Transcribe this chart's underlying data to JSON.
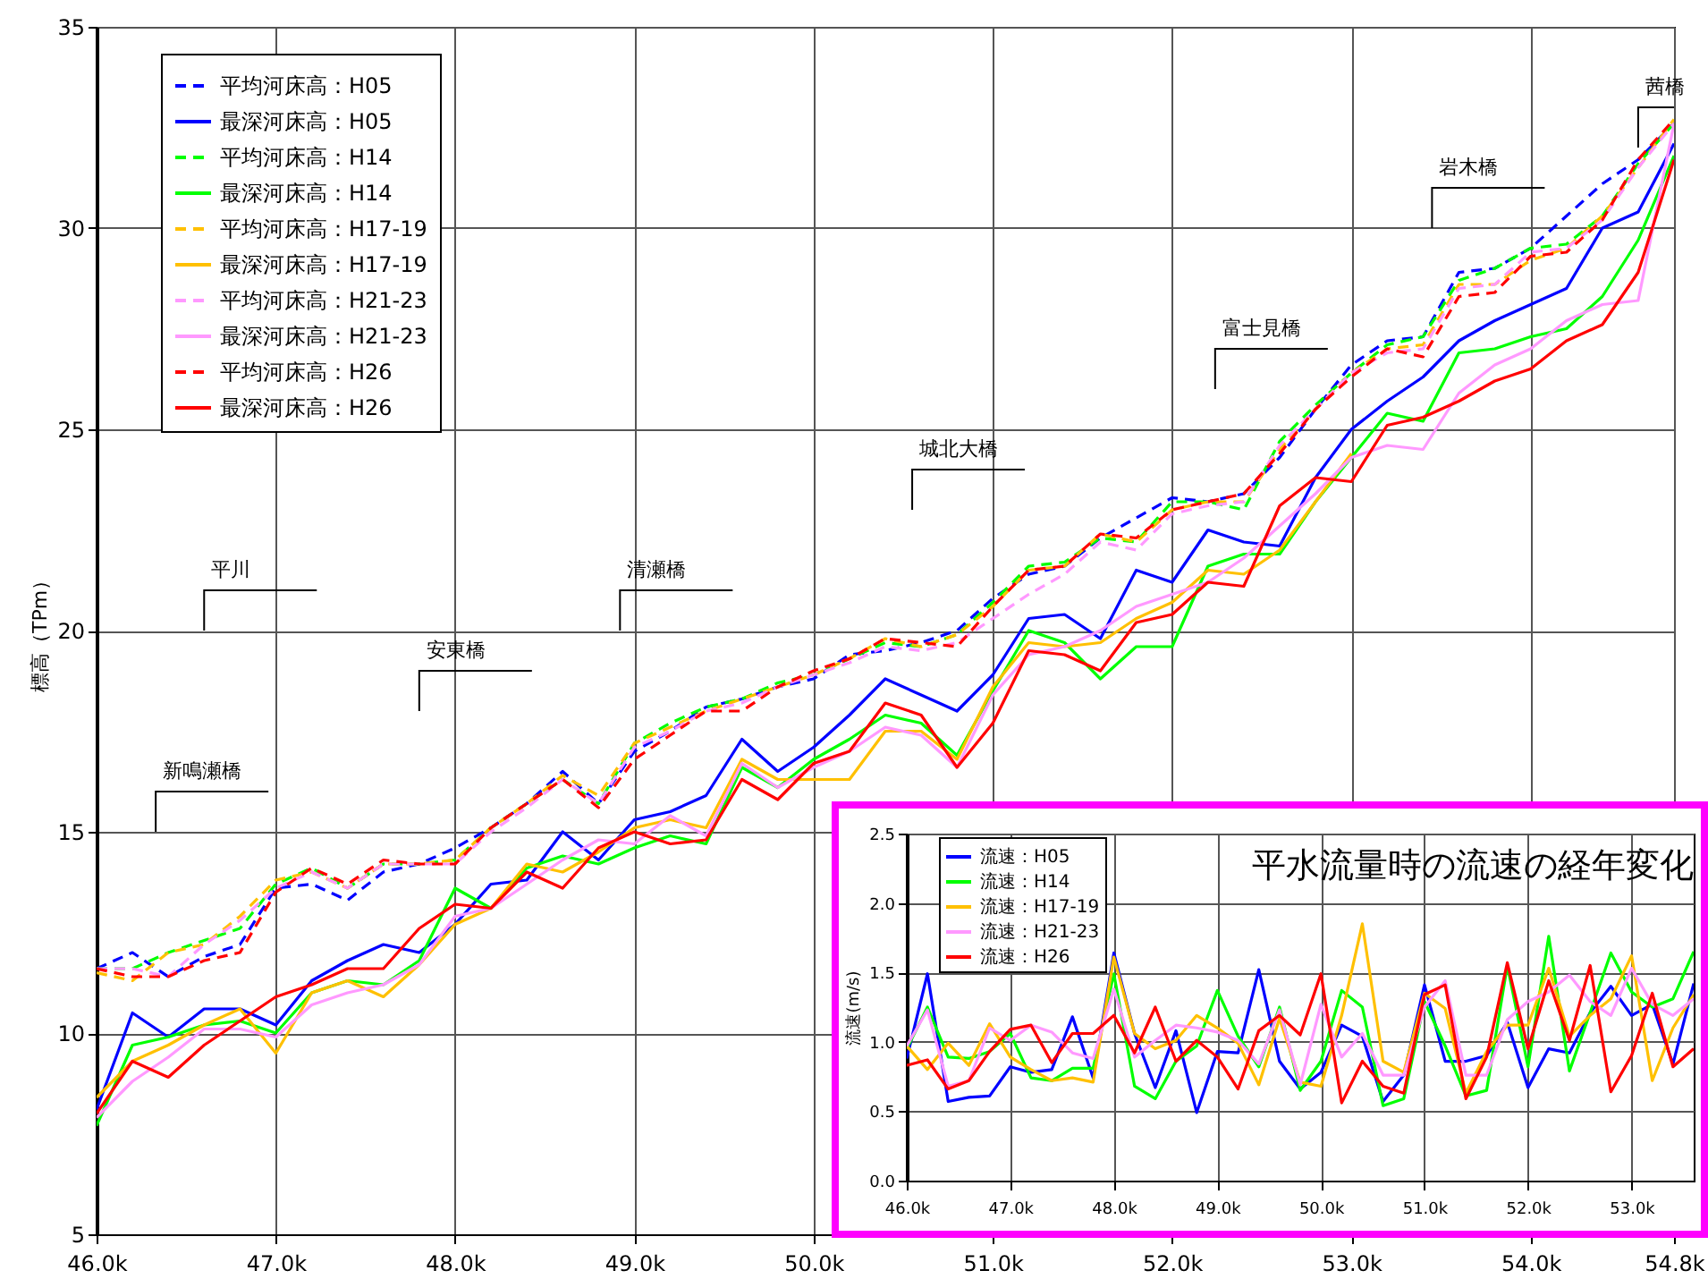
{
  "chart_data": [
    {
      "type": "line",
      "ylabel": "標高（TPm）",
      "x": [
        46,
        46.2,
        46.4,
        46.6,
        46.8,
        47,
        47.2,
        47.4,
        47.6,
        47.8,
        48,
        48.2,
        48.4,
        48.6,
        48.8,
        49,
        49.2,
        49.4,
        49.6,
        49.8,
        50,
        50.2,
        50.4,
        50.6,
        50.8,
        51,
        51.2,
        51.4,
        51.6,
        51.8,
        52,
        52.2,
        52.4,
        52.6,
        52.8,
        53,
        53.2,
        53.4,
        53.6,
        53.8,
        54,
        54.2,
        54.4,
        54.6,
        54.8
      ],
      "xlim": [
        46,
        54.8
      ],
      "xticks": [
        {
          "value": 46,
          "label": "46.0k"
        },
        {
          "value": 47,
          "label": "47.0k"
        },
        {
          "value": 48,
          "label": "48.0k"
        },
        {
          "value": 49,
          "label": "49.0k"
        },
        {
          "value": 50,
          "label": "50.0k"
        },
        {
          "value": 51,
          "label": "51.0k"
        },
        {
          "value": 52,
          "label": "52.0k"
        },
        {
          "value": 53,
          "label": "53.0k"
        },
        {
          "value": 54,
          "label": "54.0k"
        },
        {
          "value": 54.8,
          "label": "54.8k"
        }
      ],
      "ylim": [
        5,
        35
      ],
      "yticks": [
        5,
        10,
        15,
        20,
        25,
        30,
        35
      ],
      "grid": true,
      "legend": "top left",
      "series": [
        {
          "name": "平均河床高：H05",
          "color": "#0000ff",
          "line_style": "dashed",
          "values": [
            11.6,
            12.0,
            11.4,
            11.9,
            12.2,
            13.6,
            13.7,
            13.3,
            14.0,
            14.2,
            14.6,
            15.1,
            15.7,
            16.5,
            15.7,
            17.0,
            17.5,
            18.1,
            18.3,
            18.6,
            18.8,
            19.4,
            19.5,
            19.7,
            20.0,
            20.8,
            21.4,
            21.6,
            22.3,
            22.8,
            23.3,
            23.2,
            23.4,
            24.3,
            25.5,
            26.6,
            27.2,
            27.3,
            28.9,
            29.0,
            29.5,
            30.3,
            31.1,
            31.7,
            32.6
          ]
        },
        {
          "name": "最深河床高：H05",
          "color": "#0000ff",
          "line_style": "solid",
          "values": [
            8.1,
            10.5,
            9.9,
            10.6,
            10.6,
            10.2,
            11.3,
            11.8,
            12.2,
            12.0,
            12.7,
            13.7,
            13.8,
            15.0,
            14.3,
            15.3,
            15.5,
            15.9,
            17.3,
            16.5,
            17.1,
            17.9,
            18.8,
            18.4,
            18.0,
            18.9,
            20.3,
            20.4,
            19.8,
            21.5,
            21.2,
            22.5,
            22.2,
            22.1,
            23.8,
            25.0,
            25.7,
            26.3,
            27.2,
            27.7,
            28.1,
            28.5,
            30.0,
            30.4,
            32.1
          ]
        },
        {
          "name": "平均河床高：H14",
          "color": "#00ff00",
          "line_style": "dashed",
          "values": [
            11.6,
            11.6,
            12.0,
            12.3,
            12.6,
            13.7,
            14.1,
            13.6,
            14.2,
            14.2,
            14.3,
            15.1,
            15.7,
            16.3,
            15.7,
            17.2,
            17.7,
            18.1,
            18.3,
            18.7,
            18.9,
            19.3,
            19.7,
            19.6,
            19.9,
            20.7,
            21.6,
            21.7,
            22.3,
            22.2,
            23.2,
            23.2,
            23.0,
            24.7,
            25.6,
            26.4,
            27.1,
            27.3,
            28.7,
            29.0,
            29.5,
            29.6,
            30.3,
            31.6,
            32.6
          ]
        },
        {
          "name": "最深河床高：H14",
          "color": "#00ff00",
          "line_style": "solid",
          "values": [
            7.7,
            9.7,
            9.9,
            10.2,
            10.3,
            10.0,
            11.0,
            11.3,
            11.2,
            11.8,
            13.6,
            13.1,
            14.1,
            14.4,
            14.2,
            14.6,
            14.9,
            14.7,
            16.6,
            16.1,
            16.8,
            17.3,
            17.9,
            17.7,
            16.9,
            18.5,
            20.0,
            19.7,
            18.8,
            19.6,
            19.6,
            21.6,
            21.9,
            21.9,
            23.2,
            24.3,
            25.4,
            25.2,
            26.9,
            27.0,
            27.3,
            27.5,
            28.3,
            29.7,
            31.8
          ]
        },
        {
          "name": "平均河床高：H17-19",
          "color": "#ffc000",
          "line_style": "dashed",
          "values": [
            11.5,
            11.3,
            12.0,
            12.2,
            12.9,
            13.8,
            14.0,
            13.6,
            14.2,
            14.2,
            14.3,
            15.1,
            15.7,
            16.4,
            15.9,
            17.2,
            17.6,
            18.0,
            18.3,
            18.6,
            18.9,
            19.3,
            19.8,
            19.6,
            19.9,
            20.6,
            21.5,
            21.6,
            22.4,
            22.2,
            23.0,
            23.2,
            23.2,
            24.5,
            25.5,
            26.4,
            27.0,
            27.1,
            28.6,
            28.6,
            29.2,
            29.5,
            30.3,
            31.5,
            32.7
          ]
        },
        {
          "name": "最深河床高：H17-19",
          "color": "#ffc000",
          "line_style": "solid",
          "values": [
            8.4,
            9.3,
            9.7,
            10.2,
            10.6,
            9.5,
            11.0,
            11.3,
            10.9,
            11.7,
            12.7,
            13.1,
            14.2,
            14.0,
            14.5,
            15.1,
            15.3,
            15.1,
            16.8,
            16.3,
            16.3,
            16.3,
            17.5,
            17.5,
            16.8,
            18.6,
            19.7,
            19.6,
            19.7,
            20.3,
            20.7,
            21.5,
            21.4,
            22.0,
            23.2,
            24.4,
            null,
            null,
            null,
            null,
            null,
            null,
            null,
            null,
            null
          ]
        },
        {
          "name": "平均河床高：H21-23",
          "color": "#ff99ff",
          "line_style": "dashed",
          "values": [
            11.6,
            11.6,
            11.4,
            12.2,
            12.8,
            13.6,
            14.0,
            13.6,
            14.2,
            14.2,
            14.2,
            15.0,
            15.6,
            16.3,
            15.7,
            17.1,
            17.5,
            18.0,
            18.2,
            18.6,
            18.9,
            19.2,
            19.6,
            19.5,
            19.7,
            20.3,
            20.9,
            21.4,
            22.2,
            22.0,
            22.9,
            23.1,
            23.2,
            24.6,
            25.5,
            26.4,
            26.9,
            27.0,
            28.5,
            28.6,
            29.4,
            29.5,
            30.2,
            31.5,
            32.6
          ]
        },
        {
          "name": "最深河床高：H21-23",
          "color": "#ff99ff",
          "line_style": "solid",
          "values": [
            7.9,
            8.8,
            9.4,
            10.1,
            10.1,
            9.9,
            10.7,
            11.0,
            11.2,
            11.7,
            12.9,
            13.1,
            13.7,
            14.3,
            14.8,
            14.7,
            15.4,
            14.9,
            16.7,
            16.1,
            16.6,
            17.0,
            17.6,
            17.4,
            16.6,
            18.4,
            19.4,
            19.6,
            20.0,
            20.6,
            20.9,
            21.2,
            21.8,
            22.6,
            23.4,
            24.3,
            24.6,
            24.5,
            25.9,
            26.6,
            27.0,
            27.7,
            28.1,
            28.2,
            32.6
          ]
        },
        {
          "name": "平均河床高：H26",
          "color": "#ff0000",
          "line_style": "dashed",
          "values": [
            11.6,
            11.4,
            11.4,
            11.8,
            12.0,
            13.5,
            14.1,
            13.7,
            14.3,
            14.2,
            14.2,
            15.1,
            15.7,
            16.3,
            15.6,
            16.8,
            17.4,
            18.0,
            18.0,
            18.6,
            19.0,
            19.3,
            19.8,
            19.7,
            19.6,
            20.6,
            21.5,
            21.6,
            22.4,
            22.3,
            23.0,
            23.2,
            23.4,
            24.4,
            25.5,
            26.3,
            27.0,
            26.8,
            28.3,
            28.4,
            29.3,
            29.4,
            30.2,
            31.7,
            32.7
          ]
        },
        {
          "name": "最深河床高：H26",
          "color": "#ff0000",
          "line_style": "solid",
          "values": [
            8.0,
            9.3,
            8.9,
            9.7,
            10.3,
            10.9,
            11.2,
            11.6,
            11.6,
            12.6,
            13.2,
            13.1,
            14.0,
            13.6,
            14.6,
            15.0,
            14.7,
            14.8,
            16.3,
            15.8,
            16.7,
            17.0,
            18.2,
            17.9,
            16.6,
            17.7,
            19.5,
            19.4,
            19.0,
            20.2,
            20.4,
            21.2,
            21.1,
            23.1,
            23.8,
            23.7,
            25.1,
            25.3,
            25.7,
            26.2,
            26.5,
            27.2,
            27.6,
            28.9,
            31.7
          ]
        }
      ],
      "annotations": [
        "新鳴瀬橋",
        "平川",
        "安東橋",
        "清瀬橋",
        "城北大橋",
        "富士見橋",
        "岩木橋",
        "茜橋"
      ]
    },
    {
      "type": "line",
      "title": "平水流量時の流速の経年変化",
      "ylabel": "流速(m/s)",
      "x": [
        46,
        46.2,
        46.4,
        46.6,
        46.8,
        47,
        47.2,
        47.4,
        47.6,
        47.8,
        48,
        48.2,
        48.4,
        48.6,
        48.8,
        49,
        49.2,
        49.4,
        49.6,
        49.8,
        50,
        50.2,
        50.4,
        50.6,
        50.8,
        51,
        51.2,
        51.4,
        51.6,
        51.8,
        52,
        52.2,
        52.4,
        52.6,
        52.8,
        53,
        53.2,
        53.4,
        53.6
      ],
      "xlim": [
        46,
        53.6
      ],
      "xticks": [
        {
          "value": 46,
          "label": "46.0k"
        },
        {
          "value": 47,
          "label": "47.0k"
        },
        {
          "value": 48,
          "label": "48.0k"
        },
        {
          "value": 49,
          "label": "49.0k"
        },
        {
          "value": 50,
          "label": "50.0k"
        },
        {
          "value": 51,
          "label": "51.0k"
        },
        {
          "value": 52,
          "label": "52.0k"
        },
        {
          "value": 53,
          "label": "53.0k"
        }
      ],
      "ylim": [
        0,
        2.5
      ],
      "yticks": [
        {
          "value": 0,
          "label": "0.0"
        },
        {
          "value": 0.5,
          "label": "0.5"
        },
        {
          "value": 1,
          "label": "1.0"
        },
        {
          "value": 1.5,
          "label": "1.5"
        },
        {
          "value": 2,
          "label": "2.0"
        },
        {
          "value": 2.5,
          "label": "2.5"
        }
      ],
      "grid": true,
      "legend": "top left",
      "series": [
        {
          "name": "流速：H05",
          "color": "#0000ff",
          "line_style": "solid",
          "values": [
            0.88,
            1.49,
            0.57,
            0.6,
            0.61,
            0.82,
            0.78,
            0.8,
            1.18,
            0.74,
            1.64,
            1.06,
            0.67,
            1.08,
            0.49,
            0.93,
            0.92,
            1.52,
            0.86,
            0.66,
            0.78,
            1.12,
            1.04,
            0.57,
            0.76,
            1.41,
            0.86,
            0.86,
            0.9,
            1.14,
            0.67,
            0.95,
            0.92,
            1.21,
            1.4,
            1.19,
            1.27,
            0.84,
            1.42
          ]
        },
        {
          "name": "流速：H14",
          "color": "#00ff00",
          "line_style": "solid",
          "values": [
            0.95,
            1.25,
            0.89,
            0.88,
            0.93,
            1.06,
            0.74,
            0.72,
            0.81,
            0.81,
            1.49,
            0.68,
            0.59,
            0.86,
            0.97,
            1.37,
            1.04,
            0.82,
            1.25,
            0.65,
            0.86,
            1.37,
            1.25,
            0.54,
            0.59,
            1.29,
            0.97,
            0.61,
            0.65,
            1.55,
            0.82,
            1.76,
            0.79,
            1.21,
            1.64,
            1.36,
            1.25,
            1.31,
            1.65
          ]
        },
        {
          "name": "流速：H17-19",
          "color": "#ffc000",
          "line_style": "solid",
          "values": [
            0.97,
            0.8,
            0.99,
            0.83,
            1.13,
            0.89,
            0.8,
            0.72,
            0.74,
            0.71,
            1.61,
            1.06,
            0.95,
            1.01,
            1.19,
            1.1,
            0.99,
            0.69,
            1.17,
            0.71,
            0.68,
            1.19,
            1.85,
            0.86,
            0.78,
            1.35,
            1.24,
            0.63,
            0.93,
            1.12,
            1.12,
            1.53,
            1.04,
            1.19,
            1.31,
            1.62,
            0.72,
            1.1,
            1.34
          ]
        },
        {
          "name": "流速：H21-23",
          "color": "#ff99ff",
          "line_style": "solid",
          "values": [
            0.97,
            1.23,
            0.68,
            0.72,
            1.1,
            1.01,
            1.12,
            1.07,
            0.92,
            0.88,
            1.38,
            0.89,
            1.01,
            1.12,
            1.1,
            1.07,
            1.01,
            0.84,
            1.23,
            0.69,
            1.27,
            0.89,
            1.06,
            0.76,
            0.76,
            1.25,
            1.44,
            0.76,
            0.76,
            1.16,
            1.29,
            1.36,
            1.48,
            1.29,
            1.19,
            1.53,
            1.27,
            1.19,
            1.31
          ]
        },
        {
          "name": "流速：H26",
          "color": "#ff0000",
          "line_style": "solid",
          "values": [
            0.83,
            0.87,
            0.66,
            0.72,
            0.93,
            1.09,
            1.12,
            0.85,
            1.06,
            1.06,
            1.19,
            0.92,
            1.25,
            0.86,
            1.01,
            0.89,
            0.66,
            1.08,
            1.19,
            1.05,
            1.49,
            0.56,
            0.86,
            0.68,
            0.63,
            1.34,
            1.41,
            0.59,
            0.89,
            1.57,
            0.95,
            1.44,
            1.01,
            1.55,
            0.64,
            0.9,
            1.35,
            0.82,
            0.95
          ]
        }
      ]
    }
  ]
}
